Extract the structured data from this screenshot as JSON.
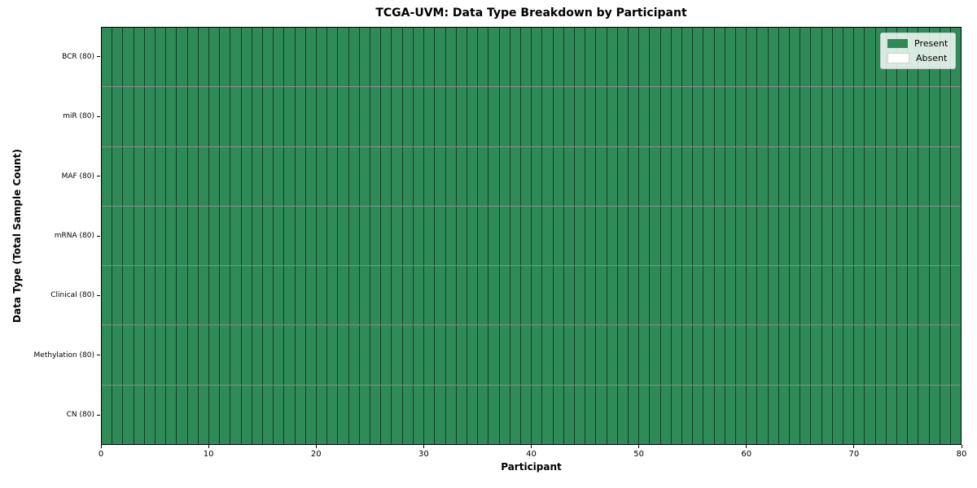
{
  "figure": {
    "title": "TCGA-UVM: Data Type Breakdown by Participant",
    "xlabel": "Participant",
    "ylabel": "Data Type (Total Sample Count)"
  },
  "legend": {
    "position": "upper right",
    "items": [
      {
        "label": "Present",
        "color": "#2e8b57"
      },
      {
        "label": "Absent",
        "color": "#ffffff"
      }
    ]
  },
  "chart_data": {
    "type": "heatmap",
    "title": "TCGA-UVM: Data Type Breakdown by Participant",
    "xlabel": "Participant",
    "ylabel": "Data Type (Total Sample Count)",
    "xlim": [
      0,
      80
    ],
    "x_ticks": [
      0,
      10,
      20,
      30,
      40,
      50,
      60,
      70,
      80
    ],
    "n_participants": 80,
    "rows": [
      {
        "label": "BCR (80)",
        "data_type": "BCR",
        "total_samples": 80,
        "present": 80,
        "absent": 0
      },
      {
        "label": "miR (80)",
        "data_type": "miR",
        "total_samples": 80,
        "present": 80,
        "absent": 0
      },
      {
        "label": "MAF (80)",
        "data_type": "MAF",
        "total_samples": 80,
        "present": 80,
        "absent": 0
      },
      {
        "label": "mRNA (80)",
        "data_type": "mRNA",
        "total_samples": 80,
        "present": 80,
        "absent": 0
      },
      {
        "label": "Clinical (80)",
        "data_type": "Clinical",
        "total_samples": 80,
        "present": 80,
        "absent": 0
      },
      {
        "label": "Methylation (80)",
        "data_type": "Methylation",
        "total_samples": 80,
        "present": 80,
        "absent": 0
      },
      {
        "label": "CN (80)",
        "data_type": "CN",
        "total_samples": 80,
        "present": 80,
        "absent": 0
      }
    ],
    "colors": {
      "present": "#2e8b57",
      "absent": "#ffffff",
      "grid_line": "rgba(0,0,0,0.55)",
      "spine": "#000000"
    },
    "grid": "cell-borders",
    "legend_position": "upper right"
  }
}
